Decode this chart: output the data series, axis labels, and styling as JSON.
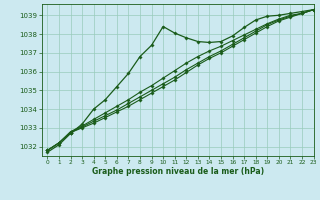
{
  "title": "Graphe pression niveau de la mer (hPa)",
  "background_color": "#cce9f0",
  "grid_color": "#99ccbb",
  "line_color": "#1a5c1a",
  "xlim": [
    -0.5,
    23
  ],
  "ylim": [
    1031.5,
    1039.6
  ],
  "yticks": [
    1032,
    1033,
    1034,
    1035,
    1036,
    1037,
    1038,
    1039
  ],
  "xticks": [
    0,
    1,
    2,
    3,
    4,
    5,
    6,
    7,
    8,
    9,
    10,
    11,
    12,
    13,
    14,
    15,
    16,
    17,
    18,
    19,
    20,
    21,
    22,
    23
  ],
  "series": [
    [
      1031.7,
      1032.1,
      1032.7,
      1033.2,
      1034.0,
      1034.5,
      1035.2,
      1035.9,
      1036.8,
      1037.4,
      1038.4,
      1038.05,
      1037.8,
      1037.6,
      1037.55,
      1037.6,
      1037.9,
      1038.35,
      1038.75,
      1038.95,
      1039.0,
      1039.1,
      1039.2,
      1039.3
    ],
    [
      1031.8,
      1032.2,
      1032.8,
      1033.1,
      1033.45,
      1033.8,
      1034.15,
      1034.5,
      1034.9,
      1035.25,
      1035.65,
      1036.05,
      1036.45,
      1036.8,
      1037.1,
      1037.35,
      1037.65,
      1037.95,
      1038.25,
      1038.55,
      1038.8,
      1039.0,
      1039.1,
      1039.3
    ],
    [
      1031.8,
      1032.2,
      1032.75,
      1033.05,
      1033.35,
      1033.65,
      1033.95,
      1034.3,
      1034.65,
      1035.0,
      1035.35,
      1035.7,
      1036.1,
      1036.45,
      1036.8,
      1037.1,
      1037.45,
      1037.8,
      1038.15,
      1038.5,
      1038.75,
      1038.95,
      1039.1,
      1039.3
    ],
    [
      1031.8,
      1032.2,
      1032.75,
      1033.0,
      1033.25,
      1033.55,
      1033.85,
      1034.15,
      1034.5,
      1034.85,
      1035.2,
      1035.55,
      1035.95,
      1036.35,
      1036.7,
      1037.0,
      1037.35,
      1037.7,
      1038.05,
      1038.4,
      1038.7,
      1038.9,
      1039.1,
      1039.3
    ]
  ]
}
